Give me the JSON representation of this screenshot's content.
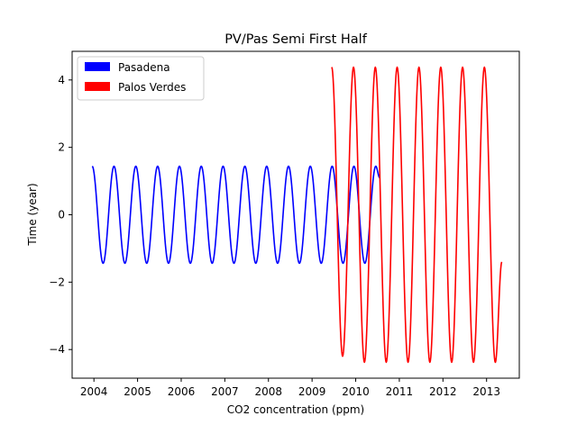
{
  "chart_data": {
    "type": "line",
    "title": "PV/Pas Semi First Half",
    "xlabel": "CO2 concentration (ppm)",
    "ylabel": "Time (year)",
    "xlim": [
      2003.5,
      2013.75
    ],
    "ylim": [
      -4.85,
      4.85
    ],
    "x_ticks": [
      2004,
      2005,
      2006,
      2007,
      2008,
      2009,
      2010,
      2011,
      2012,
      2013
    ],
    "x_tick_labels": [
      "2004",
      "2005",
      "2006",
      "2007",
      "2008",
      "2009",
      "2010",
      "2011",
      "2012",
      "2013"
    ],
    "y_ticks": [
      -4,
      -2,
      0,
      2,
      4
    ],
    "y_tick_labels": [
      "−4",
      "−2",
      "0",
      "2",
      "4"
    ],
    "grid": false,
    "legend": {
      "placement": "upper-left",
      "entries": [
        {
          "label": "Pasadena",
          "color": "#0000ff"
        },
        {
          "label": "Palos Verdes",
          "color": "#ff0000"
        }
      ]
    },
    "series": [
      {
        "name": "Pasadena",
        "color": "#0000ff",
        "period_years": 0.5,
        "amplitude": 1.44,
        "x_range": [
          2003.96,
          2010.55
        ],
        "x": [
          2003.96,
          2004.21,
          2004.46,
          2004.71,
          2004.96,
          2005.21,
          2005.46,
          2005.71,
          2005.96,
          2006.21,
          2006.46,
          2006.71,
          2006.96,
          2007.21,
          2007.46,
          2007.71,
          2007.96,
          2008.21,
          2008.46,
          2008.71,
          2008.96,
          2009.21,
          2009.46,
          2009.71,
          2009.96,
          2010.21,
          2010.46,
          2010.55
        ],
        "y": [
          1.44,
          -1.44,
          1.44,
          -1.44,
          1.44,
          -1.44,
          1.44,
          -1.44,
          1.44,
          -1.44,
          1.44,
          -1.44,
          1.44,
          -1.44,
          1.44,
          -1.44,
          1.44,
          -1.44,
          1.44,
          -1.44,
          1.44,
          -1.44,
          1.44,
          -1.44,
          1.44,
          -1.44,
          1.44,
          1.1
        ]
      },
      {
        "name": "Palos Verdes",
        "color": "#ff0000",
        "period_years": 0.5,
        "amplitude": 4.38,
        "x_range": [
          2009.45,
          2013.35
        ],
        "x": [
          2009.45,
          2009.7,
          2009.95,
          2010.2,
          2010.45,
          2010.7,
          2010.95,
          2011.2,
          2011.45,
          2011.7,
          2011.95,
          2012.2,
          2012.45,
          2012.7,
          2012.95,
          2013.2,
          2013.35
        ],
        "y": [
          4.38,
          -4.2,
          4.38,
          -4.38,
          4.38,
          -4.38,
          4.38,
          -4.38,
          4.38,
          -4.38,
          4.38,
          -4.38,
          4.38,
          -4.38,
          4.38,
          -4.38,
          -1.4
        ]
      }
    ]
  }
}
